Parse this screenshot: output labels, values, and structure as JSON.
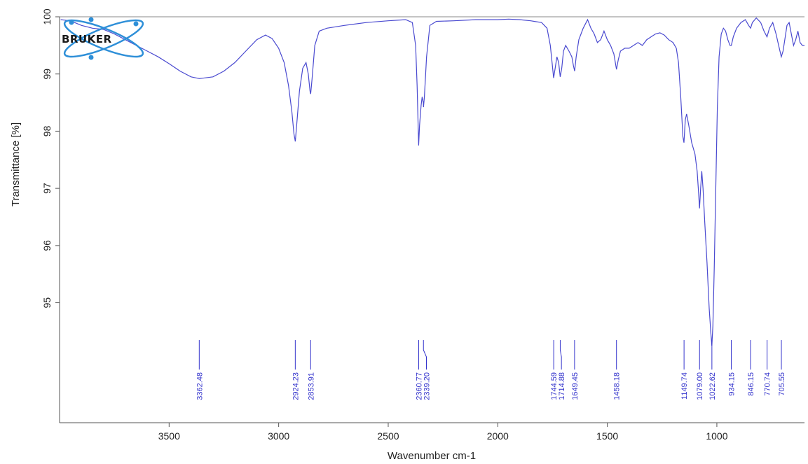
{
  "logo": {
    "text": "BRUKER"
  },
  "colors": {
    "spectrum": "#4a4ad0",
    "peak_marker": "#3333cc",
    "axis": "#555555",
    "logo_orbit": "#2e8fd8"
  },
  "chart_data": {
    "type": "line",
    "title": "",
    "xlabel": "Wavenumber cm-1",
    "ylabel": "Transmittance [%]",
    "xlim": [
      4000,
      600
    ],
    "ylim": [
      93,
      100
    ],
    "x_reversed": true,
    "grid": false,
    "x_ticks": [
      3500,
      3000,
      2500,
      2000,
      1500,
      1000
    ],
    "y_ticks": [
      95,
      96,
      97,
      98,
      99,
      100
    ],
    "series": [
      {
        "points": [
          [
            3995,
            99.95
          ],
          [
            3950,
            99.93
          ],
          [
            3900,
            99.85
          ],
          [
            3850,
            99.8
          ],
          [
            3800,
            99.78
          ],
          [
            3750,
            99.7
          ],
          [
            3700,
            99.6
          ],
          [
            3650,
            99.5
          ],
          [
            3600,
            99.4
          ],
          [
            3550,
            99.3
          ],
          [
            3500,
            99.18
          ],
          [
            3450,
            99.05
          ],
          [
            3400,
            98.95
          ],
          [
            3362,
            98.92
          ],
          [
            3300,
            98.95
          ],
          [
            3250,
            99.05
          ],
          [
            3200,
            99.2
          ],
          [
            3150,
            99.4
          ],
          [
            3100,
            99.6
          ],
          [
            3060,
            99.68
          ],
          [
            3030,
            99.62
          ],
          [
            3000,
            99.45
          ],
          [
            2975,
            99.2
          ],
          [
            2955,
            98.8
          ],
          [
            2940,
            98.35
          ],
          [
            2930,
            97.95
          ],
          [
            2924,
            97.82
          ],
          [
            2918,
            98.1
          ],
          [
            2905,
            98.7
          ],
          [
            2890,
            99.1
          ],
          [
            2875,
            99.2
          ],
          [
            2865,
            99.0
          ],
          [
            2857,
            98.7
          ],
          [
            2854,
            98.65
          ],
          [
            2848,
            98.9
          ],
          [
            2835,
            99.5
          ],
          [
            2815,
            99.75
          ],
          [
            2780,
            99.8
          ],
          [
            2700,
            99.85
          ],
          [
            2600,
            99.9
          ],
          [
            2500,
            99.93
          ],
          [
            2420,
            99.95
          ],
          [
            2390,
            99.9
          ],
          [
            2375,
            99.5
          ],
          [
            2368,
            98.8
          ],
          [
            2362,
            97.9
          ],
          [
            2361,
            97.75
          ],
          [
            2357,
            98.1
          ],
          [
            2350,
            98.45
          ],
          [
            2345,
            98.6
          ],
          [
            2340,
            98.5
          ],
          [
            2339,
            98.42
          ],
          [
            2335,
            98.6
          ],
          [
            2325,
            99.3
          ],
          [
            2310,
            99.85
          ],
          [
            2280,
            99.92
          ],
          [
            2200,
            99.93
          ],
          [
            2100,
            99.95
          ],
          [
            2000,
            99.95
          ],
          [
            1950,
            99.96
          ],
          [
            1900,
            99.95
          ],
          [
            1850,
            99.93
          ],
          [
            1800,
            99.9
          ],
          [
            1775,
            99.8
          ],
          [
            1760,
            99.5
          ],
          [
            1752,
            99.2
          ],
          [
            1745,
            98.93
          ],
          [
            1738,
            99.1
          ],
          [
            1730,
            99.3
          ],
          [
            1722,
            99.2
          ],
          [
            1715,
            98.95
          ],
          [
            1708,
            99.1
          ],
          [
            1700,
            99.4
          ],
          [
            1690,
            99.5
          ],
          [
            1675,
            99.4
          ],
          [
            1662,
            99.3
          ],
          [
            1655,
            99.15
          ],
          [
            1649,
            99.05
          ],
          [
            1642,
            99.3
          ],
          [
            1630,
            99.6
          ],
          [
            1610,
            99.8
          ],
          [
            1590,
            99.95
          ],
          [
            1575,
            99.8
          ],
          [
            1560,
            99.7
          ],
          [
            1545,
            99.55
          ],
          [
            1530,
            99.6
          ],
          [
            1515,
            99.75
          ],
          [
            1500,
            99.6
          ],
          [
            1485,
            99.5
          ],
          [
            1470,
            99.35
          ],
          [
            1458,
            99.08
          ],
          [
            1450,
            99.25
          ],
          [
            1440,
            99.4
          ],
          [
            1420,
            99.45
          ],
          [
            1400,
            99.45
          ],
          [
            1380,
            99.5
          ],
          [
            1360,
            99.55
          ],
          [
            1340,
            99.5
          ],
          [
            1320,
            99.6
          ],
          [
            1300,
            99.65
          ],
          [
            1280,
            99.7
          ],
          [
            1260,
            99.72
          ],
          [
            1240,
            99.68
          ],
          [
            1220,
            99.6
          ],
          [
            1200,
            99.55
          ],
          [
            1185,
            99.45
          ],
          [
            1175,
            99.2
          ],
          [
            1165,
            98.6
          ],
          [
            1155,
            97.9
          ],
          [
            1150,
            97.8
          ],
          [
            1144,
            98.2
          ],
          [
            1138,
            98.3
          ],
          [
            1128,
            98.1
          ],
          [
            1115,
            97.8
          ],
          [
            1100,
            97.6
          ],
          [
            1090,
            97.3
          ],
          [
            1083,
            96.9
          ],
          [
            1079,
            96.65
          ],
          [
            1074,
            97.0
          ],
          [
            1069,
            97.3
          ],
          [
            1063,
            97.0
          ],
          [
            1055,
            96.4
          ],
          [
            1045,
            95.7
          ],
          [
            1035,
            94.9
          ],
          [
            1028,
            94.5
          ],
          [
            1023,
            94.25
          ],
          [
            1018,
            94.6
          ],
          [
            1012,
            95.6
          ],
          [
            1005,
            97.0
          ],
          [
            998,
            98.4
          ],
          [
            990,
            99.3
          ],
          [
            980,
            99.7
          ],
          [
            970,
            99.8
          ],
          [
            960,
            99.75
          ],
          [
            950,
            99.6
          ],
          [
            940,
            99.5
          ],
          [
            934,
            99.5
          ],
          [
            925,
            99.65
          ],
          [
            910,
            99.8
          ],
          [
            890,
            99.9
          ],
          [
            870,
            99.95
          ],
          [
            855,
            99.85
          ],
          [
            846,
            99.8
          ],
          [
            838,
            99.9
          ],
          [
            820,
            99.98
          ],
          [
            800,
            99.9
          ],
          [
            785,
            99.75
          ],
          [
            771,
            99.65
          ],
          [
            760,
            99.8
          ],
          [
            745,
            99.9
          ],
          [
            730,
            99.7
          ],
          [
            718,
            99.5
          ],
          [
            706,
            99.3
          ],
          [
            698,
            99.4
          ],
          [
            690,
            99.6
          ],
          [
            680,
            99.85
          ],
          [
            670,
            99.9
          ],
          [
            660,
            99.7
          ],
          [
            650,
            99.5
          ],
          [
            640,
            99.6
          ],
          [
            630,
            99.75
          ],
          [
            620,
            99.55
          ],
          [
            610,
            99.5
          ],
          [
            600,
            99.5
          ]
        ]
      }
    ],
    "peaks": [
      {
        "x": 3362.48,
        "label": "3362.48"
      },
      {
        "x": 2924.23,
        "label": "2924.23"
      },
      {
        "x": 2853.91,
        "label": "2853.91"
      },
      {
        "x": 2360.77,
        "label": "2360.77"
      },
      {
        "x": 2339.2,
        "label": "2339.20"
      },
      {
        "x": 1744.59,
        "label": "1744.59"
      },
      {
        "x": 1714.88,
        "label": "1714.88"
      },
      {
        "x": 1649.45,
        "label": "1649.45"
      },
      {
        "x": 1458.18,
        "label": "1458.18"
      },
      {
        "x": 1149.74,
        "label": "1149.74"
      },
      {
        "x": 1079.0,
        "label": "1079.00"
      },
      {
        "x": 1022.62,
        "label": "1022.62"
      },
      {
        "x": 934.15,
        "label": "934.15"
      },
      {
        "x": 846.15,
        "label": "846.15"
      },
      {
        "x": 770.74,
        "label": "770.74"
      },
      {
        "x": 705.55,
        "label": "705.55"
      }
    ]
  }
}
